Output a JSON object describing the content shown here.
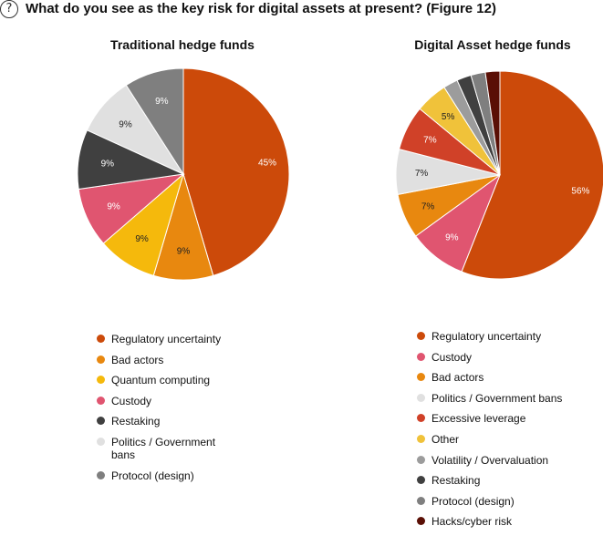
{
  "header": {
    "help_icon_glyph": "?",
    "title": "What do you see as the key risk for digital assets at present? (Figure 12)"
  },
  "chart_data": [
    {
      "type": "pie",
      "title": "Traditional hedge funds",
      "slices": [
        {
          "label": "Regulatory uncertainty",
          "value": 45,
          "display": "45%",
          "color": "#cc4a0a"
        },
        {
          "label": "Bad actors",
          "value": 9,
          "display": "9%",
          "color": "#e8880f"
        },
        {
          "label": "Quantum computing",
          "value": 9,
          "display": "9%",
          "color": "#f5b90c"
        },
        {
          "label": "Custody",
          "value": 9,
          "display": "9%",
          "color": "#e05570"
        },
        {
          "label": "Restaking",
          "value": 9,
          "display": "9%",
          "color": "#404040"
        },
        {
          "label": "Politics / Government bans",
          "value": 9,
          "display": "9%",
          "color": "#e0e0e0"
        },
        {
          "label": "Protocol (design)",
          "value": 9,
          "display": "9%",
          "color": "#7f7f7f"
        }
      ],
      "legend": [
        {
          "label": "Regulatory uncertainty",
          "color": "#cc4a0a"
        },
        {
          "label": "Bad actors",
          "color": "#e8880f"
        },
        {
          "label": "Quantum computing",
          "color": "#f5b90c"
        },
        {
          "label": "Custody",
          "color": "#e05570"
        },
        {
          "label": "Restaking",
          "color": "#404040"
        },
        {
          "label": "Politics / Government bans",
          "color": "#e0e0e0"
        },
        {
          "label": "Protocol (design)",
          "color": "#7f7f7f"
        }
      ]
    },
    {
      "type": "pie",
      "title": "Digital Asset hedge funds",
      "slices": [
        {
          "label": "Regulatory uncertainty",
          "value": 56,
          "display": "56%",
          "color": "#cc4a0a"
        },
        {
          "label": "Custody",
          "value": 9,
          "display": "9%",
          "color": "#e05570"
        },
        {
          "label": "Bad actors",
          "value": 7,
          "display": "7%",
          "color": "#e8880f"
        },
        {
          "label": "Politics / Government bans",
          "value": 7,
          "display": "7%",
          "color": "#e0e0e0"
        },
        {
          "label": "Excessive leverage",
          "value": 7,
          "display": "7%",
          "color": "#d04128"
        },
        {
          "label": "Other",
          "value": 5,
          "display": "5%",
          "color": "#f0c23a"
        },
        {
          "label": "Volatility / Overvaluation",
          "value": 2.25,
          "display": "",
          "color": "#9c9c9c"
        },
        {
          "label": "Restaking",
          "value": 2.25,
          "display": "",
          "color": "#404040"
        },
        {
          "label": "Protocol (design)",
          "value": 2.25,
          "display": "",
          "color": "#7f7f7f"
        },
        {
          "label": "Hacks/cyber risk",
          "value": 2.25,
          "display": "",
          "color": "#5a0f05"
        }
      ],
      "legend": [
        {
          "label": "Regulatory uncertainty",
          "color": "#cc4a0a"
        },
        {
          "label": "Custody",
          "color": "#e05570"
        },
        {
          "label": "Bad actors",
          "color": "#e8880f"
        },
        {
          "label": "Politics / Government bans",
          "color": "#e0e0e0"
        },
        {
          "label": "Excessive leverage",
          "color": "#d04128"
        },
        {
          "label": "Other",
          "color": "#f0c23a"
        },
        {
          "label": "Volatility / Overvaluation",
          "color": "#9c9c9c"
        },
        {
          "label": "Restaking",
          "color": "#404040"
        },
        {
          "label": "Protocol (design)",
          "color": "#7f7f7f"
        },
        {
          "label": "Hacks/cyber risk",
          "color": "#5a0f05"
        }
      ]
    }
  ]
}
